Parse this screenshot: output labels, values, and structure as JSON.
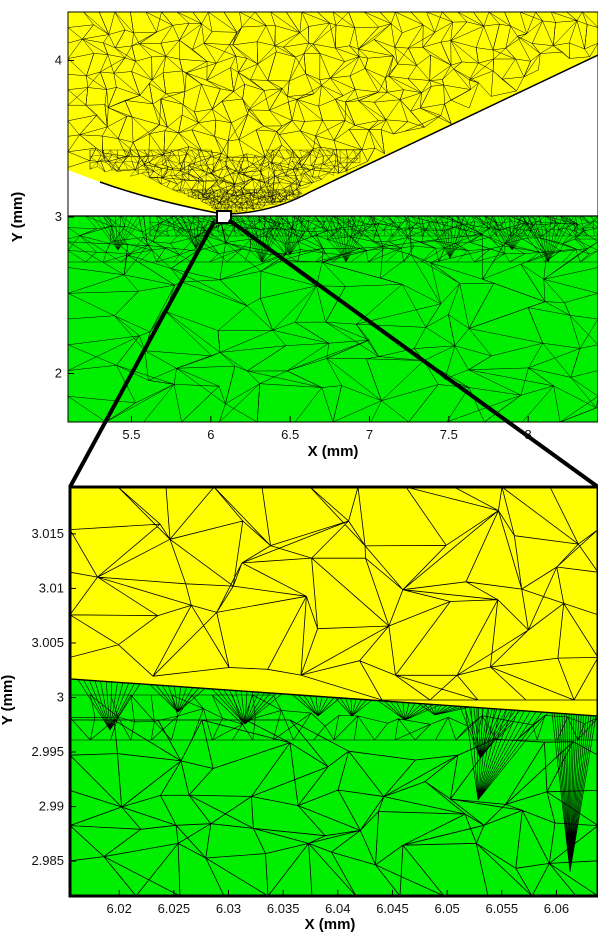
{
  "chart_data": [
    {
      "type": "mesh",
      "panel": "overview",
      "xlabel": "X (mm)",
      "ylabel": "Y (mm)",
      "xlim": [
        5.1,
        8.44
      ],
      "ylim": [
        1.69,
        4.31
      ],
      "xticks": [
        5.5,
        6,
        6.5,
        7,
        7.5,
        8
      ],
      "xtick_labels": [
        "5.5",
        "6",
        "6.5",
        "7",
        "7.5",
        "8"
      ],
      "yticks": [
        2,
        3,
        4
      ],
      "ytick_labels": [
        "2",
        "3",
        "4"
      ],
      "grid": false,
      "regions": [
        {
          "name": "",
          "color": "#ffff00",
          "shape": "tool",
          "tip_x": 6.06,
          "tip_y": 3.005
        },
        {
          "name": "",
          "color": "#00ee00",
          "shape": "workpiece",
          "top_y": 3.0
        }
      ],
      "zoom_box": {
        "x": [
          6.0,
          6.1
        ],
        "y": [
          2.97,
          3.03
        ]
      }
    },
    {
      "type": "mesh",
      "panel": "zoom",
      "xlabel": "X (mm)",
      "ylabel": "Y (mm)",
      "xlim": [
        6.0155,
        6.0638
      ],
      "ylim": [
        2.9818,
        3.0193
      ],
      "xticks": [
        6.02,
        6.025,
        6.03,
        6.035,
        6.04,
        6.045,
        6.05,
        6.055,
        6.06
      ],
      "xtick_labels": [
        "6.02",
        "6.025",
        "6.03",
        "6.035",
        "6.04",
        "6.045",
        "6.05",
        "6.055",
        "6.06"
      ],
      "yticks": [
        2.985,
        2.99,
        2.995,
        3.0,
        3.005,
        3.01,
        3.015
      ],
      "ytick_labels": [
        "2.985",
        "2.99",
        "2.995",
        "3",
        "3.005",
        "3.01",
        "3.015"
      ],
      "grid": false,
      "interface": [
        [
          6.0155,
          3.0017
        ],
        [
          6.0638,
          2.9983
        ]
      ],
      "regions": [
        {
          "name": "",
          "color": "#ffff00",
          "position": "above interface"
        },
        {
          "name": "",
          "color": "#00ee00",
          "position": "below interface"
        }
      ]
    }
  ]
}
